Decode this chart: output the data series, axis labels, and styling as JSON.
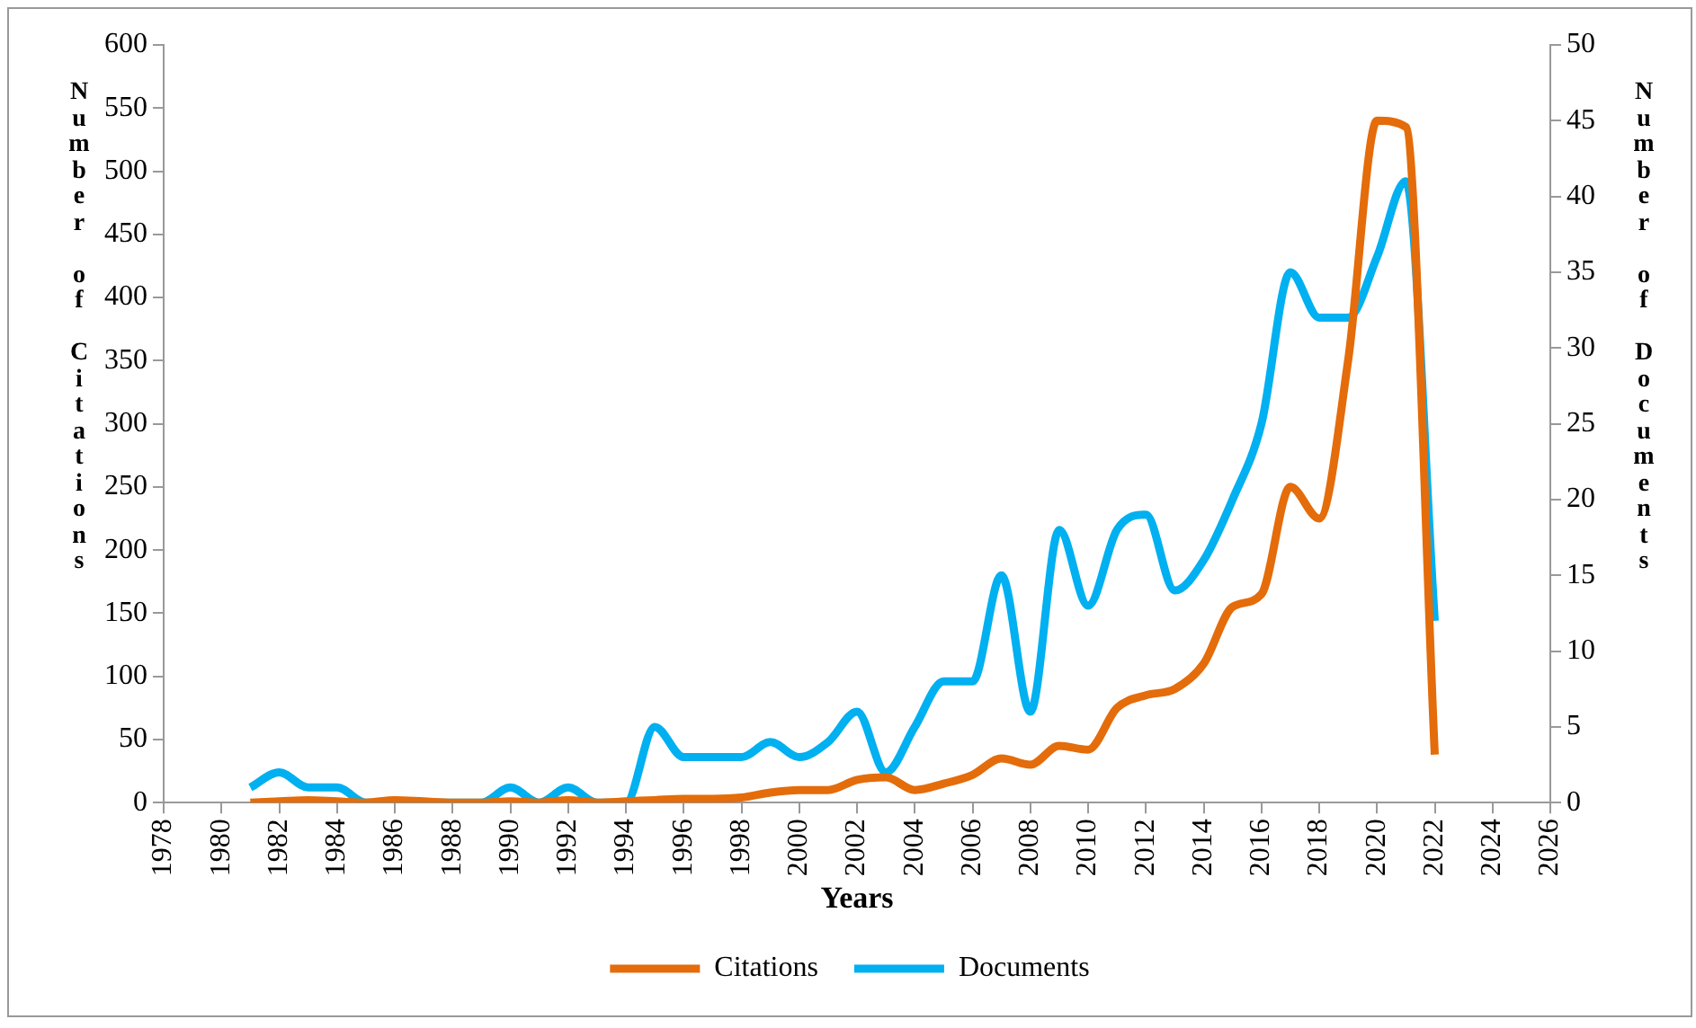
{
  "chart_data": {
    "type": "line",
    "xlabel": "Years",
    "ylabel": "Number of Citations",
    "y2label": "Number of Documents",
    "x": [
      1981,
      1982,
      1983,
      1984,
      1985,
      1986,
      1987,
      1988,
      1989,
      1990,
      1991,
      1992,
      1993,
      1994,
      1995,
      1996,
      1997,
      1998,
      1999,
      2000,
      2001,
      2002,
      2003,
      2004,
      2005,
      2006,
      2007,
      2008,
      2009,
      2010,
      2011,
      2012,
      2013,
      2014,
      2015,
      2016,
      2017,
      2018,
      2019,
      2020,
      2021,
      2022
    ],
    "series": [
      {
        "name": "Citations",
        "color": "#e46c0a",
        "values": [
          0,
          1,
          2,
          1,
          0,
          2,
          1,
          0,
          0,
          1,
          0,
          2,
          0,
          1,
          2,
          3,
          3,
          4,
          8,
          10,
          10,
          18,
          20,
          10,
          15,
          22,
          35,
          30,
          45,
          42,
          75,
          85,
          90,
          110,
          155,
          165,
          250,
          225,
          350,
          540,
          535,
          38
        ]
      },
      {
        "name": "Documents",
        "color": "#00b0f0",
        "axis": "y2",
        "values": [
          1,
          2,
          1,
          1,
          0,
          0,
          0,
          0,
          0,
          1,
          0,
          1,
          0,
          0,
          5,
          3,
          3,
          3,
          4,
          3,
          4,
          6,
          2,
          5,
          8,
          8,
          15,
          6,
          18,
          13,
          18,
          19,
          14,
          16,
          20,
          25,
          35,
          32,
          32,
          36,
          41,
          12
        ]
      }
    ],
    "xlim": [
      1978,
      2026
    ],
    "xticks": [
      1978,
      1980,
      1982,
      1984,
      1986,
      1988,
      1990,
      1992,
      1994,
      1996,
      1998,
      2000,
      2002,
      2004,
      2006,
      2008,
      2010,
      2012,
      2014,
      2016,
      2018,
      2020,
      2022,
      2024,
      2026
    ],
    "ylim": [
      0,
      600
    ],
    "yticks": [
      0,
      50,
      100,
      150,
      200,
      250,
      300,
      350,
      400,
      450,
      500,
      550,
      600
    ],
    "y2lim": [
      0,
      50
    ],
    "y2ticks": [
      0,
      5,
      10,
      15,
      20,
      25,
      30,
      35,
      40,
      45,
      50
    ],
    "grid": false,
    "legend": "bottom",
    "marker": "none",
    "line_style": "solid"
  }
}
